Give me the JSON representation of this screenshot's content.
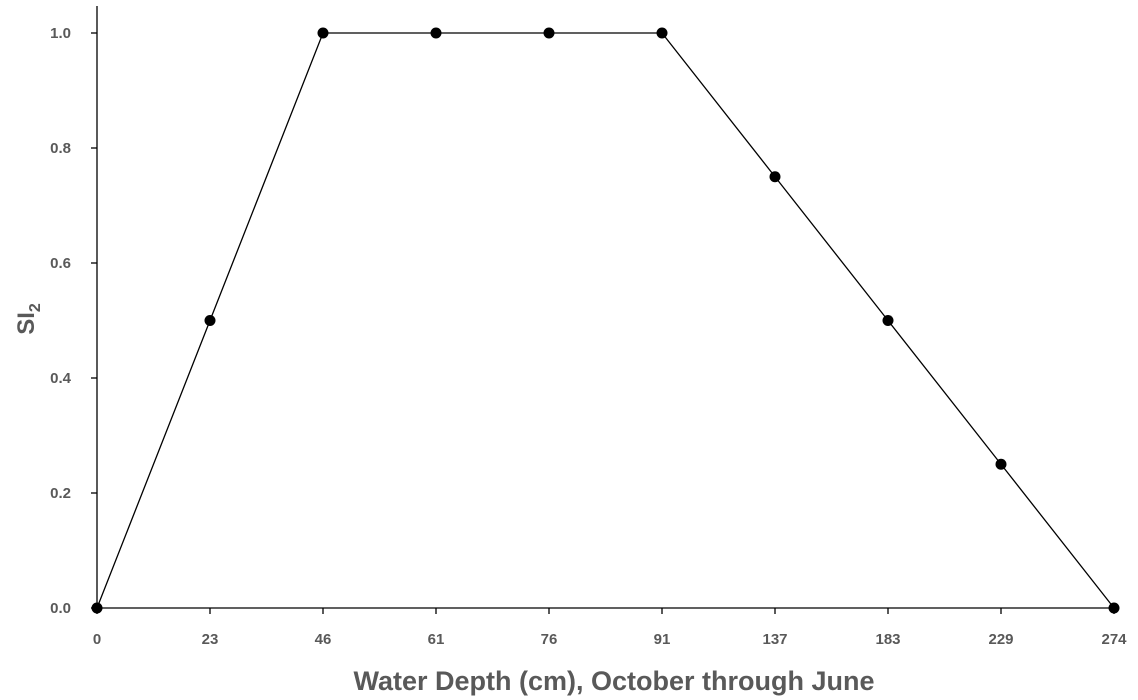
{
  "chart_data": {
    "type": "line",
    "title": "",
    "xlabel": "Water Depth (cm), October through June",
    "ylabel": "SI",
    "ylabel_subscript": "2",
    "categories": [
      "0",
      "23",
      "46",
      "61",
      "76",
      "91",
      "137",
      "183",
      "229",
      "274"
    ],
    "series": [
      {
        "values": [
          0.0,
          0.5,
          1.0,
          1.0,
          1.0,
          1.0,
          0.75,
          0.5,
          0.25,
          0.0
        ]
      }
    ],
    "y_ticks": [
      "0.0",
      "0.2",
      "0.4",
      "0.6",
      "0.8",
      "1.0"
    ],
    "ylim": [
      0,
      1.0
    ],
    "grid": false,
    "legend": "none",
    "colors": {
      "line": "#000000",
      "marker": "#000000",
      "axis": "#000000",
      "text": "#595959"
    }
  }
}
